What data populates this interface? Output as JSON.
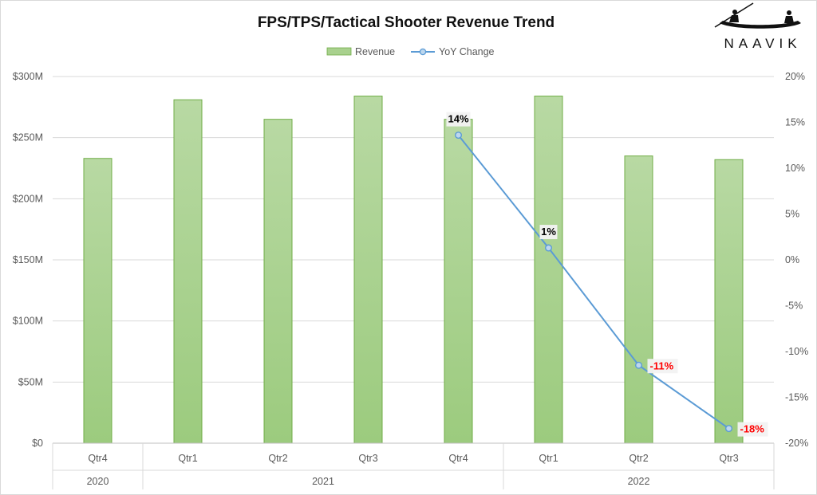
{
  "chart_data": {
    "type": "bar",
    "title": "FPS/TPS/Tactical Shooter Revenue Trend",
    "categories": [
      "Qtr4",
      "Qtr1",
      "Qtr2",
      "Qtr3",
      "Qtr4",
      "Qtr1",
      "Qtr2",
      "Qtr3"
    ],
    "category_groups": [
      {
        "label": "2020",
        "span": 1
      },
      {
        "label": "2021",
        "span": 4
      },
      {
        "label": "2022",
        "span": 3
      }
    ],
    "series": [
      {
        "name": "Revenue",
        "type": "bar",
        "axis": "left",
        "color": "#a9d18e",
        "values": [
          233,
          281,
          265,
          284,
          265,
          284,
          235,
          232
        ]
      },
      {
        "name": "YoY Change",
        "type": "line",
        "axis": "right",
        "color": "#5b9bd5",
        "values": [
          null,
          null,
          null,
          null,
          13.6,
          1.3,
          -11.5,
          -18.4
        ],
        "labels": [
          null,
          null,
          null,
          null,
          "14%",
          "1%",
          "-11%",
          "-18%"
        ]
      }
    ],
    "y_left": {
      "ylim": [
        0,
        300
      ],
      "ticks": [
        0,
        50,
        100,
        150,
        200,
        250,
        300
      ],
      "tick_labels": [
        "$0",
        "$50M",
        "$100M",
        "$150M",
        "$200M",
        "$250M",
        "$300M"
      ]
    },
    "y_right": {
      "ylim": [
        -20,
        20
      ],
      "ticks": [
        -20,
        -15,
        -10,
        -5,
        0,
        5,
        10,
        15,
        20
      ],
      "tick_labels": [
        "-20%",
        "-15%",
        "-10%",
        "-5%",
        "0%",
        "5%",
        "10%",
        "15%",
        "20%"
      ]
    },
    "grid": true,
    "legend": "top-center",
    "colors": {
      "positive_label": "#000000",
      "negative_label": "#ff0000"
    }
  },
  "logo": {
    "text": "NAAVIK"
  }
}
